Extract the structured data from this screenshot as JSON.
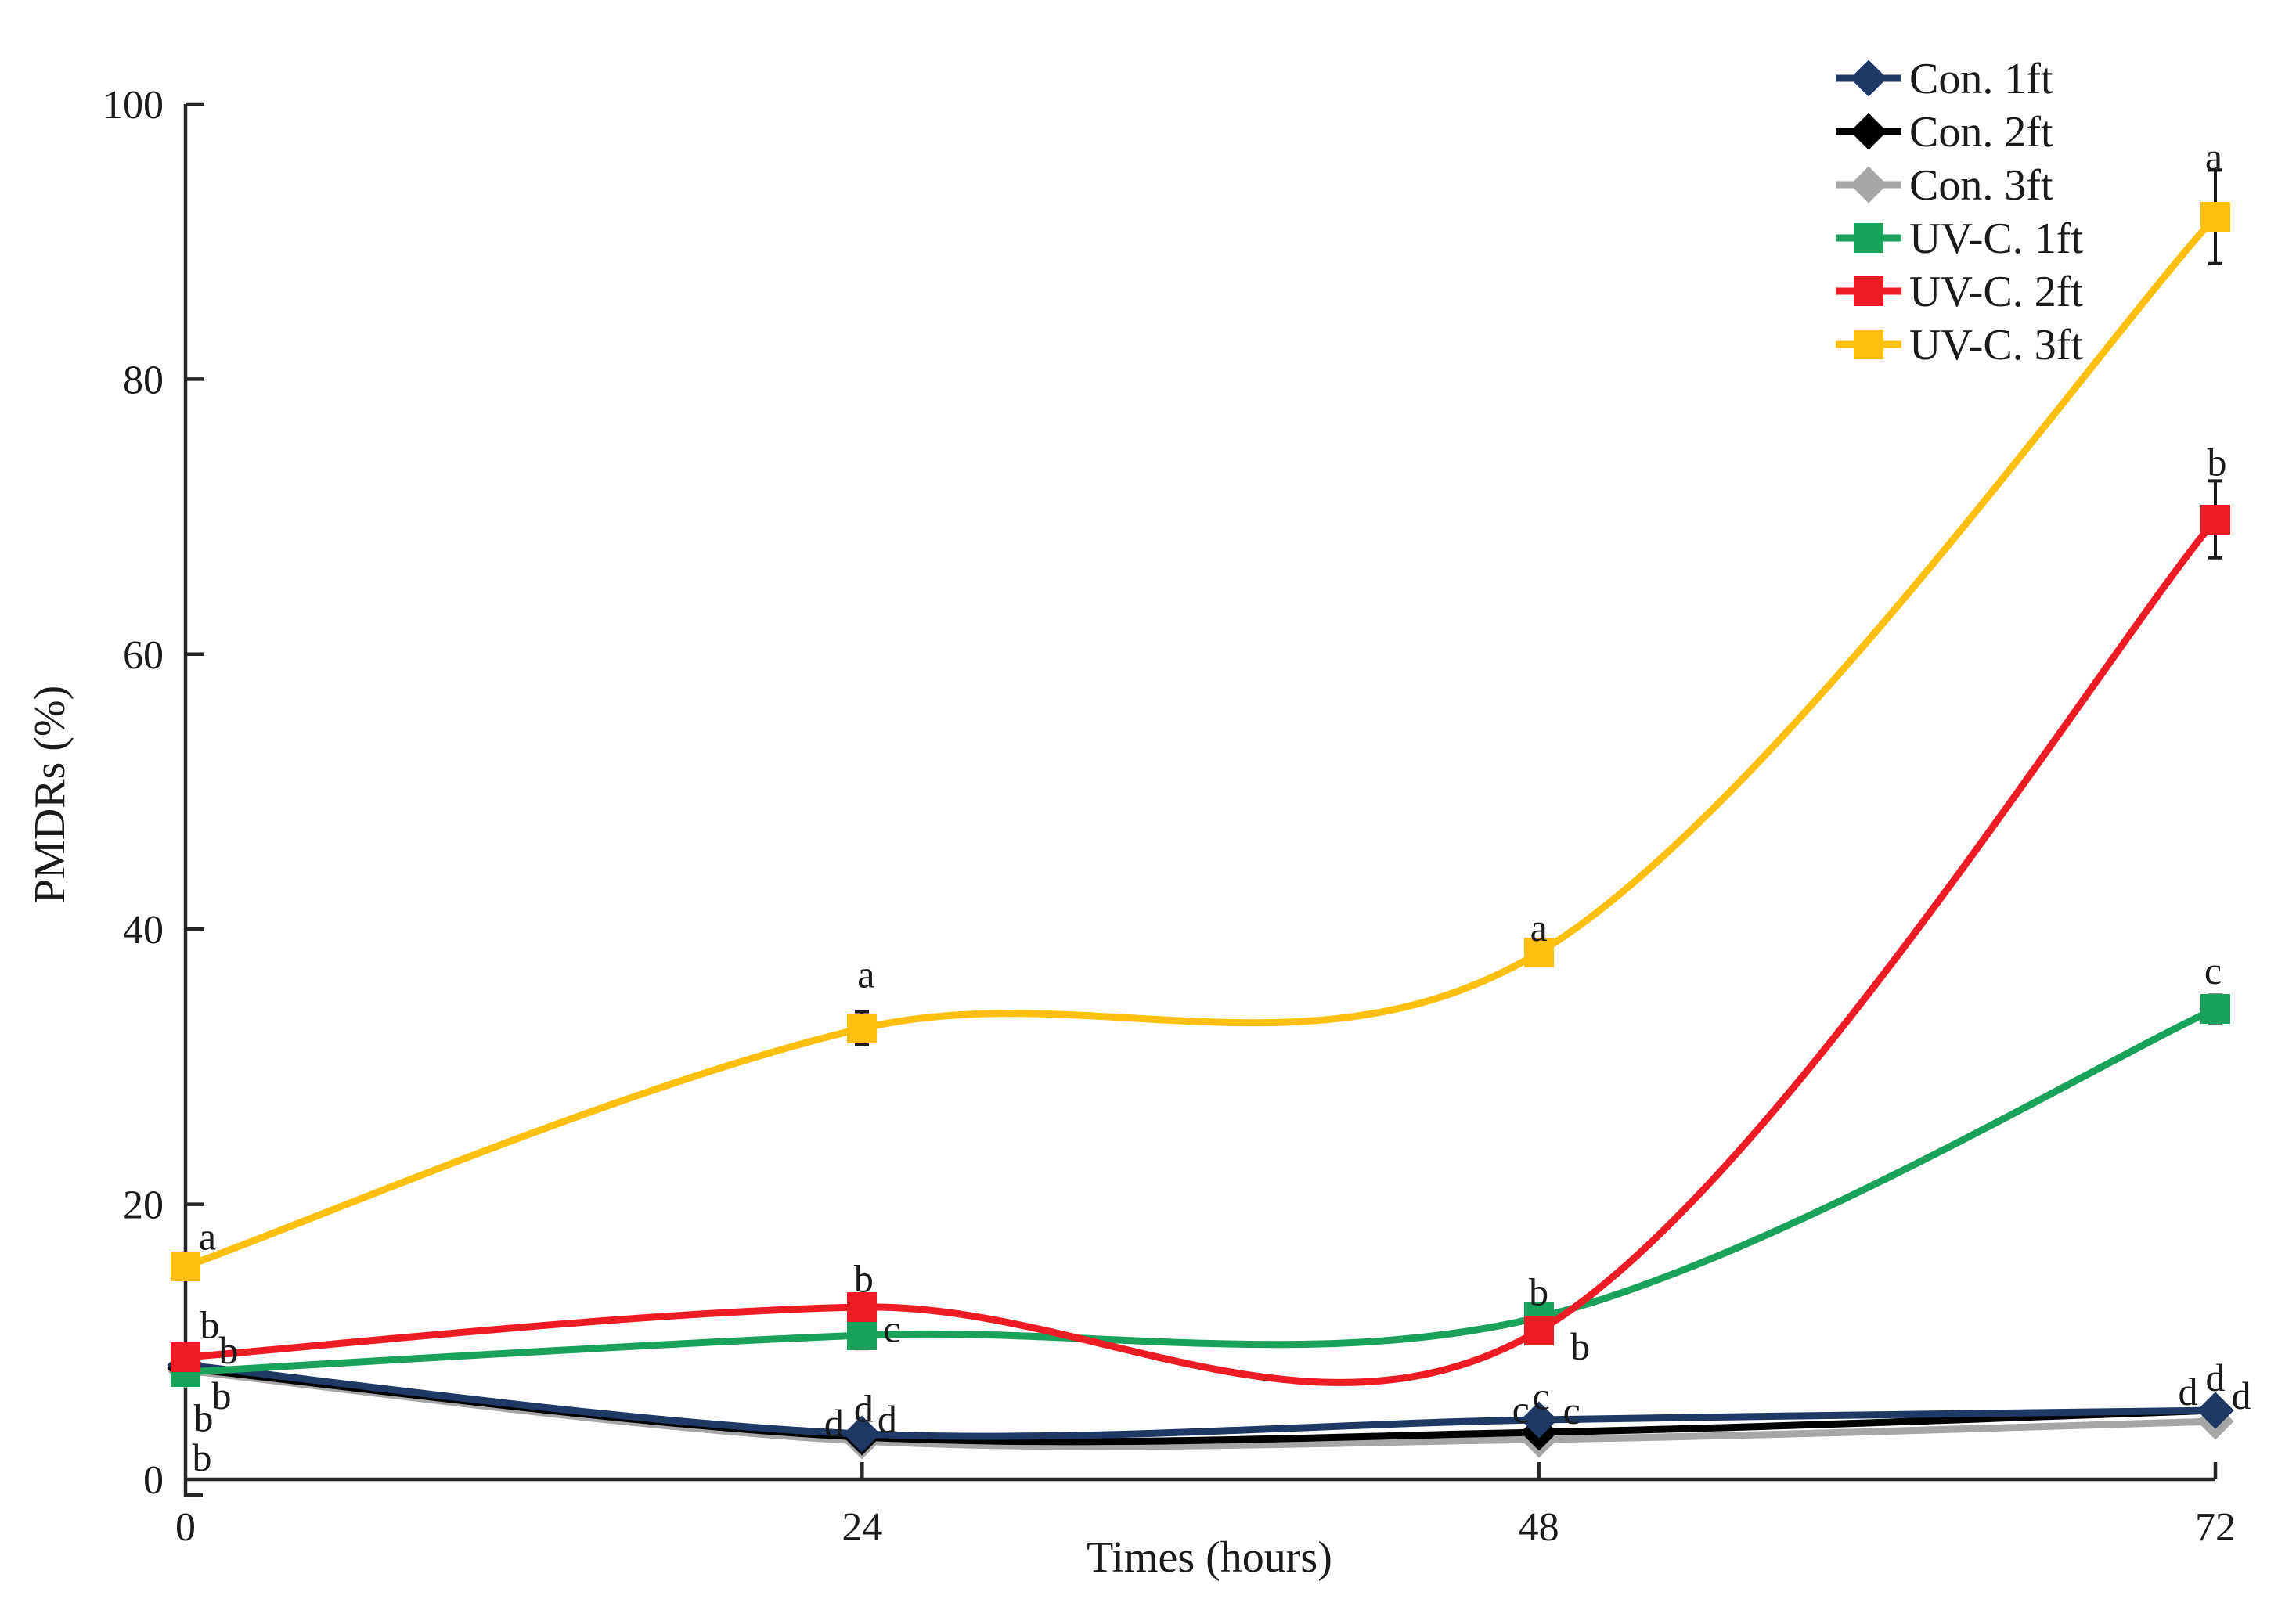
{
  "figure": {
    "background": "#ffffff",
    "axis_color": "#262626",
    "letter_color": "#1a1a1a"
  },
  "chart_data": {
    "type": "line",
    "title": "",
    "xlabel": "Times (hours)",
    "ylabel": "PMDRs (%)",
    "x": [
      0,
      24,
      48,
      72
    ],
    "x_tick_labels": [
      "0",
      "24",
      "48",
      "72"
    ],
    "y_ticks": [
      0,
      20,
      40,
      60,
      80,
      100
    ],
    "ylim": [
      0,
      100
    ],
    "grid": false,
    "line_style": "smooth",
    "legend_position": "top-right",
    "series": [
      {
        "name": "Con. 1ft",
        "color": "#1f3864",
        "marker": "diamond",
        "values": [
          8.3,
          3.3,
          4.3,
          5.0
        ],
        "errors": [
          0.3,
          0.5,
          0.4,
          0.4
        ],
        "letters": [
          "b",
          "d",
          "c",
          "d"
        ],
        "label_offsets": [
          [
            46,
            39
          ],
          [
            -36,
            -14
          ],
          [
            -23,
            -14
          ],
          [
            -35,
            -24
          ]
        ]
      },
      {
        "name": "Con. 2ft",
        "color": "#000000",
        "marker": "diamond",
        "values": [
          8.1,
          3.1,
          3.4,
          5.0
        ],
        "errors": [
          0.3,
          0.5,
          0.4,
          0.4
        ],
        "letters": [
          "b",
          "d",
          "c",
          "d"
        ],
        "label_offsets": [
          [
            23,
            64
          ],
          [
            2,
            -36
          ],
          [
            3,
            -47
          ],
          [
            0,
            -42
          ]
        ]
      },
      {
        "name": "Con. 3ft",
        "color": "#a6a6a6",
        "marker": "diamond",
        "values": [
          7.9,
          2.8,
          2.9,
          4.2
        ],
        "errors": [
          0.3,
          0.5,
          0.4,
          0.4
        ],
        "letters": [
          "b",
          "d",
          "c",
          "d"
        ],
        "label_offsets": [
          [
            21,
            111
          ],
          [
            32,
            -28
          ],
          [
            42,
            -37
          ],
          [
            33,
            -33
          ]
        ]
      },
      {
        "name": "UV-C. 1ft",
        "color": "#1aa15c",
        "marker": "square",
        "values": [
          7.8,
          10.5,
          11.8,
          34.2
        ],
        "errors": [
          0.4,
          1.0,
          0.6,
          1.0
        ],
        "letters": [
          "b",
          "c",
          "b",
          "c"
        ],
        "label_offsets": [
          [
            55,
            -28
          ],
          [
            38,
            -8
          ],
          [
            0,
            -32
          ],
          [
            -3,
            -49
          ]
        ]
      },
      {
        "name": "UV-C. 2ft",
        "color": "#ec1c24",
        "marker": "square",
        "values": [
          8.9,
          12.5,
          10.8,
          69.8
        ],
        "errors": [
          0.3,
          0.9,
          0.5,
          2.8
        ],
        "letters": [
          "b",
          "b",
          "b",
          "b"
        ],
        "label_offsets": [
          [
            31,
            -41
          ],
          [
            2,
            -37
          ],
          [
            53,
            20
          ],
          [
            2,
            -73
          ]
        ]
      },
      {
        "name": "UV-C. 3ft",
        "color": "#fdc010",
        "marker": "square",
        "values": [
          15.5,
          32.8,
          38.3,
          91.8
        ],
        "errors": [
          0.8,
          1.2,
          0.6,
          3.4
        ],
        "letters": [
          "a",
          "a",
          "a",
          "a"
        ],
        "label_offsets": [
          [
            28,
            -38
          ],
          [
            5,
            -69
          ],
          [
            0,
            -32
          ],
          [
            -2,
            -77
          ]
        ]
      }
    ]
  }
}
